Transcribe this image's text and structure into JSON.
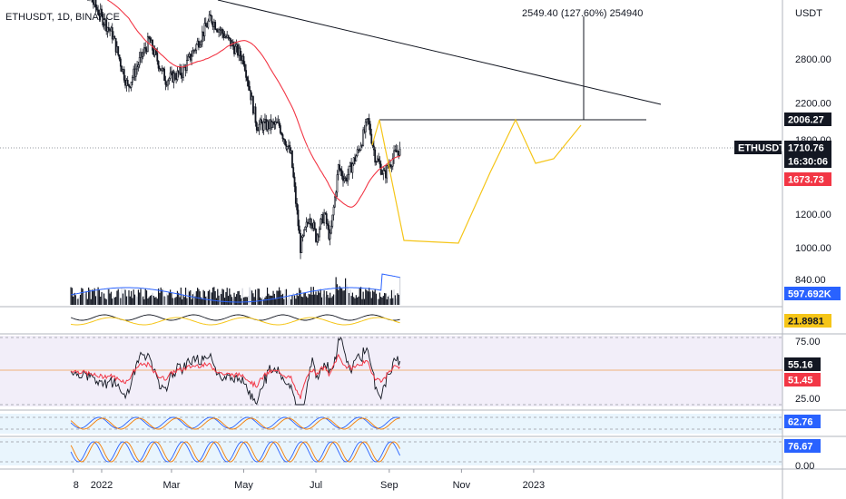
{
  "symbol_title": "ETHUSDT, 1D, BINANCE",
  "measure_label": "2549.40 (127.60%) 254940",
  "currency": "USDT",
  "chart_data": {
    "type": "candlestick",
    "y_axis": {
      "scale": "log",
      "ticks": [
        "2800.00",
        "2200.00",
        "1800.00",
        "1200.00",
        "1000.00",
        "840.00"
      ],
      "tick_values": [
        2800,
        2200,
        1800,
        1200,
        1000,
        840
      ]
    },
    "x_axis": {
      "labels": [
        "8",
        "2022",
        "Mar",
        "May",
        "Jul",
        "Sep",
        "Nov",
        "2023"
      ]
    },
    "price_anchors": [
      {
        "date": "2021-12-06",
        "close": 4300
      },
      {
        "date": "2021-12-20",
        "close": 4000
      },
      {
        "date": "2022-01-10",
        "close": 3200
      },
      {
        "date": "2022-01-23",
        "close": 2400
      },
      {
        "date": "2022-02-10",
        "close": 3100
      },
      {
        "date": "2022-02-24",
        "close": 2500
      },
      {
        "date": "2022-03-10",
        "close": 2600
      },
      {
        "date": "2022-04-03",
        "close": 3500
      },
      {
        "date": "2022-04-20",
        "close": 3050
      },
      {
        "date": "2022-05-01",
        "close": 2800
      },
      {
        "date": "2022-05-12",
        "close": 1950
      },
      {
        "date": "2022-05-31",
        "close": 1950
      },
      {
        "date": "2022-06-10",
        "close": 1650
      },
      {
        "date": "2022-06-18",
        "close": 1000
      },
      {
        "date": "2022-06-26",
        "close": 1200
      },
      {
        "date": "2022-07-01",
        "close": 1060
      },
      {
        "date": "2022-07-08",
        "close": 1200
      },
      {
        "date": "2022-07-13",
        "close": 1050
      },
      {
        "date": "2022-07-20",
        "close": 1550
      },
      {
        "date": "2022-07-26",
        "close": 1450
      },
      {
        "date": "2022-08-06",
        "close": 1700
      },
      {
        "date": "2022-08-14",
        "close": 2000
      },
      {
        "date": "2022-08-20",
        "close": 1650
      },
      {
        "date": "2022-08-28",
        "close": 1480
      },
      {
        "date": "2022-09-01",
        "close": 1580
      },
      {
        "date": "2022-09-08",
        "close": 1700
      },
      {
        "date": "2022-09-10",
        "close": 1710.76
      }
    ],
    "price_tags": [
      {
        "label": "2006.27",
        "bg": "#131722",
        "fg": "#ffffff"
      },
      {
        "label": "ETHUSDT",
        "bg": "#131722",
        "fg": "#ffffff"
      },
      {
        "label": "1710.76",
        "bg": "#131722",
        "fg": "#ffffff"
      },
      {
        "label": "16:30:06",
        "bg": "#131722",
        "fg": "#ffffff"
      },
      {
        "label": "1673.73",
        "bg": "#f23645",
        "fg": "#ffffff"
      }
    ],
    "volume_tags": [
      {
        "label": "597.692K",
        "bg": "#2962ff",
        "fg": "#ffffff"
      }
    ],
    "indicator_tags": [
      {
        "label": "21.8981",
        "bg": "#f5c518",
        "fg": "#131722"
      }
    ],
    "rsi": {
      "ticks": [
        "75.00",
        "25.00"
      ],
      "tags": [
        {
          "label": "55.16",
          "bg": "#131722",
          "fg": "#ffffff"
        },
        {
          "label": "51.45",
          "bg": "#f23645",
          "fg": "#ffffff"
        }
      ]
    },
    "stoch_rsi": {
      "tags": [
        {
          "label": "62.76",
          "bg": "#2962ff",
          "fg": "#ffffff"
        }
      ]
    },
    "stoch": {
      "ticks": [
        "0.00"
      ],
      "tags": [
        {
          "label": "76.67",
          "bg": "#2962ff",
          "fg": "#ffffff"
        }
      ]
    },
    "colors": {
      "candle_up": "#131722",
      "candle_down": "#131722",
      "ma": "#f23645",
      "pattern": "#f5c518",
      "trendline": "#131722",
      "volume_ma": "#2962ff",
      "rsi_bg": "#ede7f6",
      "stoch_bg": "#e3f2fd"
    }
  }
}
